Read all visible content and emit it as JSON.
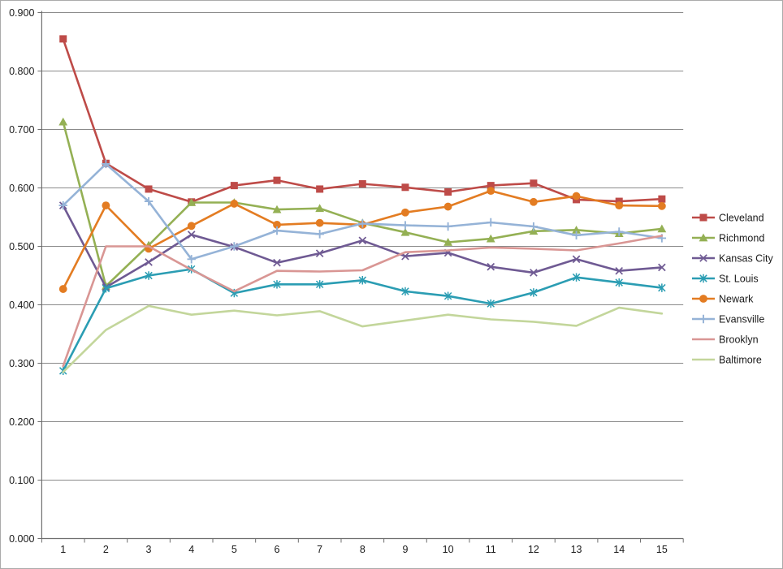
{
  "chart_data": {
    "type": "line",
    "title": "",
    "xlabel": "",
    "ylabel": "",
    "x_tick_labels": [
      "1",
      "2",
      "3",
      "4",
      "5",
      "6",
      "7",
      "8",
      "9",
      "10",
      "11",
      "12",
      "13",
      "14",
      "15"
    ],
    "y_ticks": [
      0.0,
      0.1,
      0.2,
      0.3,
      0.4,
      0.5,
      0.6,
      0.7,
      0.8,
      0.9
    ],
    "y_tick_labels": [
      "0.000",
      "0.100",
      "0.200",
      "0.300",
      "0.400",
      "0.500",
      "0.600",
      "0.700",
      "0.800",
      "0.900"
    ],
    "ylim": [
      0.0,
      0.9
    ],
    "grid": "horizontal-major",
    "legend_position": "right",
    "series": [
      {
        "name": "Cleveland",
        "color": "#BE4B48",
        "marker": "square",
        "values": [
          0.855,
          0.642,
          0.598,
          0.576,
          0.604,
          0.613,
          0.598,
          0.607,
          0.601,
          0.593,
          0.604,
          0.608,
          0.58,
          0.577,
          0.581
        ]
      },
      {
        "name": "Richmond",
        "color": "#94B054",
        "marker": "triangle",
        "values": [
          0.713,
          0.432,
          0.502,
          0.575,
          0.575,
          0.563,
          0.565,
          0.54,
          0.524,
          0.507,
          0.513,
          0.526,
          0.528,
          0.522,
          0.53
        ]
      },
      {
        "name": "Kansas City",
        "color": "#6F5A93",
        "marker": "x",
        "values": [
          0.57,
          0.43,
          0.473,
          0.52,
          0.499,
          0.472,
          0.488,
          0.51,
          0.483,
          0.489,
          0.465,
          0.455,
          0.478,
          0.458,
          0.464
        ]
      },
      {
        "name": "St. Louis",
        "color": "#2B9DB3",
        "marker": "asterisk",
        "values": [
          0.287,
          0.428,
          0.45,
          0.461,
          0.42,
          0.435,
          0.435,
          0.442,
          0.423,
          0.415,
          0.402,
          0.421,
          0.447,
          0.438,
          0.429
        ]
      },
      {
        "name": "Newark",
        "color": "#E37C22",
        "marker": "circle",
        "values": [
          0.427,
          0.57,
          0.496,
          0.535,
          0.573,
          0.537,
          0.54,
          0.537,
          0.558,
          0.568,
          0.595,
          0.576,
          0.586,
          0.57,
          0.569
        ]
      },
      {
        "name": "Evansville",
        "color": "#95B3D7",
        "marker": "plus",
        "values": [
          0.57,
          0.641,
          0.577,
          0.478,
          0.5,
          0.527,
          0.521,
          0.539,
          0.536,
          0.534,
          0.541,
          0.534,
          0.519,
          0.525,
          0.514
        ]
      },
      {
        "name": "Brooklyn",
        "color": "#D99694",
        "marker": "none",
        "values": [
          0.295,
          0.5,
          0.5,
          0.46,
          0.423,
          0.458,
          0.457,
          0.459,
          0.49,
          0.493,
          0.498,
          0.496,
          0.493,
          0.505,
          0.518
        ]
      },
      {
        "name": "Baltimore",
        "color": "#C3D69B",
        "marker": "none",
        "values": [
          0.285,
          0.357,
          0.398,
          0.383,
          0.39,
          0.382,
          0.389,
          0.363,
          0.373,
          0.383,
          0.375,
          0.371,
          0.364,
          0.395,
          0.385
        ]
      }
    ]
  },
  "colors": {
    "background": "#FFFFFF",
    "frame_border": "#ABABAB",
    "gridline": "#8A8A8A",
    "axis_line": "#6E6E6E",
    "tick_text": "#1A1A1A",
    "legend_text": "#1A1A1A"
  }
}
